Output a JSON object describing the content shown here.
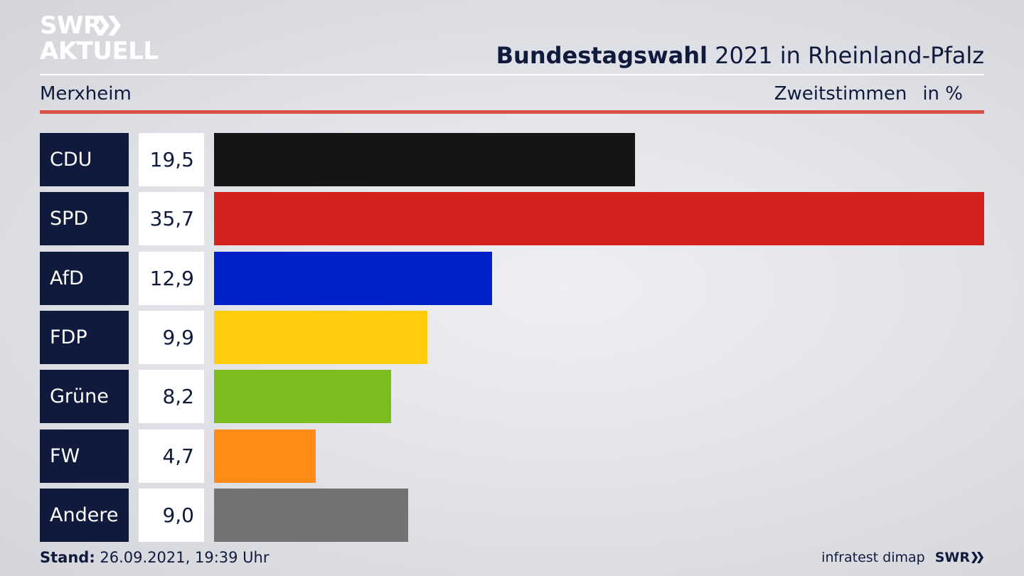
{
  "logo": {
    "line1": "SWR",
    "line2": "AKTUELL",
    "chevron_icon": "double-chevron-right-icon",
    "color": "#ffffff"
  },
  "header": {
    "title_bold": "Bundestagswahl",
    "title_rest": " 2021 in Rheinland-Pfalz",
    "location": "Merxheim",
    "measure": "Zweitstimmen",
    "unit": "in %"
  },
  "colors": {
    "label_bg": "#0f1a3c",
    "accent_rule": "#d55245"
  },
  "chart_data": {
    "type": "bar",
    "orientation": "horizontal",
    "categories": [
      "CDU",
      "SPD",
      "AfD",
      "FDP",
      "Grüne",
      "FW",
      "Andere"
    ],
    "values": [
      19.5,
      35.7,
      12.9,
      9.9,
      8.2,
      4.7,
      9.0
    ],
    "value_labels": [
      "19,5",
      "35,7",
      "12,9",
      "9,9",
      "8,2",
      "4,7",
      "9,0"
    ],
    "colors": [
      "#151515",
      "#d62121",
      "#0020c8",
      "#fdcc0a",
      "#7bbd1c",
      "#ff8c16",
      "#737373"
    ],
    "xlim": [
      0,
      35.7
    ],
    "grid": false,
    "legend": "none"
  },
  "footer": {
    "stand_label": "Stand:",
    "stand_value": " 26.09.2021, 19:39 Uhr",
    "source": "infratest dimap",
    "brand": "SWR",
    "brand_icon": "double-chevron-right-icon"
  }
}
